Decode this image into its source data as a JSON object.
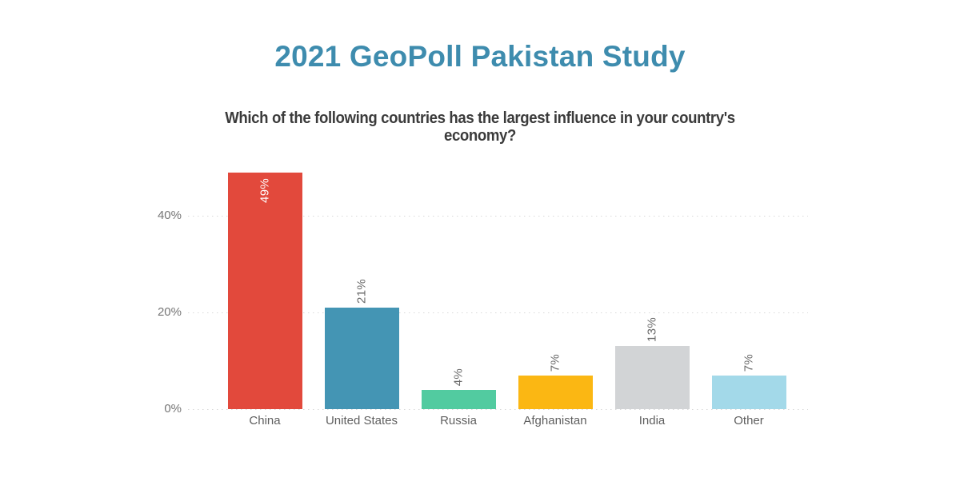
{
  "page": {
    "title": "2021 GeoPoll Pakistan Study"
  },
  "colors": {
    "background": "#FFFFFF",
    "title": "#3E8CAE",
    "question_text": "#3B3B3B",
    "axis_label": "#757575",
    "category_label": "#5F5F5F",
    "data_label": "#6A6A6A",
    "data_label_inside": "#FFFFFF",
    "gridline": "#D9D9D9"
  },
  "chart_data": {
    "type": "bar",
    "title": "Which of the following countries has the largest influence in your country's economy?",
    "title_lines": [
      "Which of the following countries has the largest influence in your country's",
      "economy?"
    ],
    "categories": [
      "China",
      "United States",
      "Russia",
      "Afghanistan",
      "India",
      "Other"
    ],
    "values": [
      49,
      21,
      4,
      7,
      13,
      7
    ],
    "data_labels": [
      "49%",
      "21%",
      "4%",
      "7%",
      "13%",
      "7%"
    ],
    "bar_colors": [
      "#E2493C",
      "#4495B4",
      "#52CBA0",
      "#FBB713",
      "#D2D4D6",
      "#A3D9E9"
    ],
    "label_inside": [
      true,
      false,
      false,
      false,
      false,
      false
    ],
    "data_label_rotation": -90,
    "y_ticks": [
      "0%",
      "20%",
      "40%"
    ],
    "ylim": [
      0,
      50
    ],
    "xlabel": "",
    "ylabel": "",
    "grid": "horizontal-dotted",
    "legend": "none"
  }
}
